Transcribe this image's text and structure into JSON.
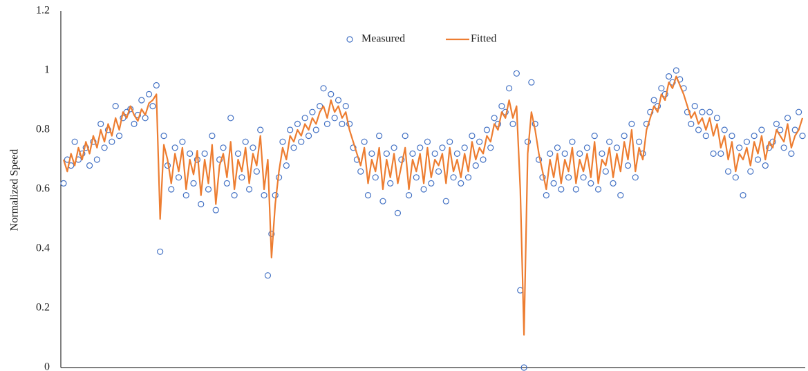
{
  "chart_data": {
    "type": "line",
    "y_label": "Normalized Speed",
    "ylim": [
      0,
      1.2
    ],
    "yticks": [
      0,
      0.2,
      0.4,
      0.6,
      0.8,
      1,
      1.2
    ],
    "grid": false,
    "legend": "top",
    "series": [
      {
        "name": "Measured",
        "color": "#4472c4",
        "kind": "scatter",
        "values": [
          0.62,
          0.7,
          0.68,
          0.76,
          0.7,
          0.72,
          0.74,
          0.68,
          0.76,
          0.7,
          0.82,
          0.74,
          0.8,
          0.76,
          0.88,
          0.78,
          0.84,
          0.86,
          0.87,
          0.82,
          0.85,
          0.9,
          0.84,
          0.92,
          0.88,
          0.95,
          0.39,
          0.78,
          0.68,
          0.6,
          0.74,
          0.64,
          0.76,
          0.58,
          0.72,
          0.62,
          0.7,
          0.55,
          0.72,
          0.6,
          0.78,
          0.53,
          0.7,
          0.74,
          0.62,
          0.84,
          0.58,
          0.72,
          0.64,
          0.76,
          0.6,
          0.74,
          0.66,
          0.8,
          0.58,
          0.31,
          0.45,
          0.58,
          0.64,
          0.76,
          0.68,
          0.8,
          0.74,
          0.82,
          0.76,
          0.84,
          0.78,
          0.86,
          0.8,
          0.88,
          0.94,
          0.82,
          0.92,
          0.84,
          0.9,
          0.82,
          0.88,
          0.82,
          0.74,
          0.7,
          0.66,
          0.76,
          0.58,
          0.72,
          0.64,
          0.78,
          0.56,
          0.72,
          0.62,
          0.74,
          0.52,
          0.7,
          0.78,
          0.58,
          0.72,
          0.64,
          0.74,
          0.6,
          0.76,
          0.62,
          0.72,
          0.66,
          0.74,
          0.56,
          0.76,
          0.64,
          0.72,
          0.62,
          0.74,
          0.64,
          0.78,
          0.68,
          0.76,
          0.7,
          0.8,
          0.74,
          0.84,
          0.82,
          0.88,
          0.86,
          0.94,
          0.82,
          0.99,
          0.26,
          0.0,
          0.76,
          0.96,
          0.82,
          0.7,
          0.64,
          0.58,
          0.72,
          0.62,
          0.74,
          0.6,
          0.72,
          0.64,
          0.76,
          0.6,
          0.72,
          0.64,
          0.74,
          0.62,
          0.78,
          0.6,
          0.72,
          0.66,
          0.76,
          0.62,
          0.74,
          0.58,
          0.78,
          0.68,
          0.82,
          0.64,
          0.76,
          0.72,
          0.82,
          0.86,
          0.9,
          0.88,
          0.94,
          0.92,
          0.98,
          0.96,
          1.0,
          0.97,
          0.94,
          0.86,
          0.82,
          0.88,
          0.8,
          0.86,
          0.78,
          0.86,
          0.72,
          0.84,
          0.72,
          0.8,
          0.66,
          0.78,
          0.64,
          0.74,
          0.58,
          0.76,
          0.66,
          0.78,
          0.7,
          0.8,
          0.68,
          0.74,
          0.76,
          0.82,
          0.8,
          0.74,
          0.84,
          0.72,
          0.8,
          0.86,
          0.78
        ]
      },
      {
        "name": "Fitted",
        "color": "#ed7d31",
        "kind": "line",
        "values": [
          0.7,
          0.66,
          0.72,
          0.68,
          0.74,
          0.7,
          0.76,
          0.72,
          0.78,
          0.74,
          0.8,
          0.76,
          0.82,
          0.78,
          0.84,
          0.8,
          0.86,
          0.84,
          0.88,
          0.85,
          0.83,
          0.87,
          0.85,
          0.89,
          0.9,
          0.92,
          0.5,
          0.75,
          0.7,
          0.62,
          0.72,
          0.66,
          0.74,
          0.6,
          0.7,
          0.65,
          0.73,
          0.58,
          0.7,
          0.62,
          0.75,
          0.55,
          0.68,
          0.72,
          0.64,
          0.76,
          0.6,
          0.7,
          0.66,
          0.74,
          0.62,
          0.72,
          0.68,
          0.78,
          0.6,
          0.7,
          0.37,
          0.55,
          0.66,
          0.74,
          0.7,
          0.78,
          0.76,
          0.8,
          0.78,
          0.82,
          0.8,
          0.84,
          0.82,
          0.86,
          0.88,
          0.84,
          0.9,
          0.86,
          0.88,
          0.84,
          0.86,
          0.8,
          0.76,
          0.72,
          0.68,
          0.74,
          0.62,
          0.7,
          0.66,
          0.74,
          0.6,
          0.7,
          0.64,
          0.72,
          0.62,
          0.68,
          0.74,
          0.6,
          0.7,
          0.66,
          0.72,
          0.62,
          0.74,
          0.64,
          0.7,
          0.68,
          0.72,
          0.62,
          0.74,
          0.66,
          0.7,
          0.64,
          0.72,
          0.66,
          0.76,
          0.7,
          0.74,
          0.72,
          0.78,
          0.76,
          0.82,
          0.8,
          0.86,
          0.84,
          0.9,
          0.84,
          0.88,
          0.6,
          0.11,
          0.72,
          0.86,
          0.8,
          0.72,
          0.66,
          0.6,
          0.7,
          0.64,
          0.72,
          0.62,
          0.7,
          0.66,
          0.74,
          0.62,
          0.7,
          0.66,
          0.72,
          0.64,
          0.76,
          0.62,
          0.7,
          0.68,
          0.74,
          0.64,
          0.72,
          0.66,
          0.76,
          0.7,
          0.8,
          0.66,
          0.74,
          0.7,
          0.8,
          0.84,
          0.88,
          0.86,
          0.92,
          0.9,
          0.96,
          0.94,
          0.98,
          0.95,
          0.92,
          0.88,
          0.84,
          0.86,
          0.82,
          0.84,
          0.8,
          0.84,
          0.78,
          0.82,
          0.74,
          0.78,
          0.7,
          0.76,
          0.66,
          0.72,
          0.7,
          0.74,
          0.68,
          0.76,
          0.72,
          0.78,
          0.7,
          0.76,
          0.74,
          0.8,
          0.78,
          0.76,
          0.82,
          0.74,
          0.78,
          0.8,
          0.84
        ]
      }
    ]
  }
}
